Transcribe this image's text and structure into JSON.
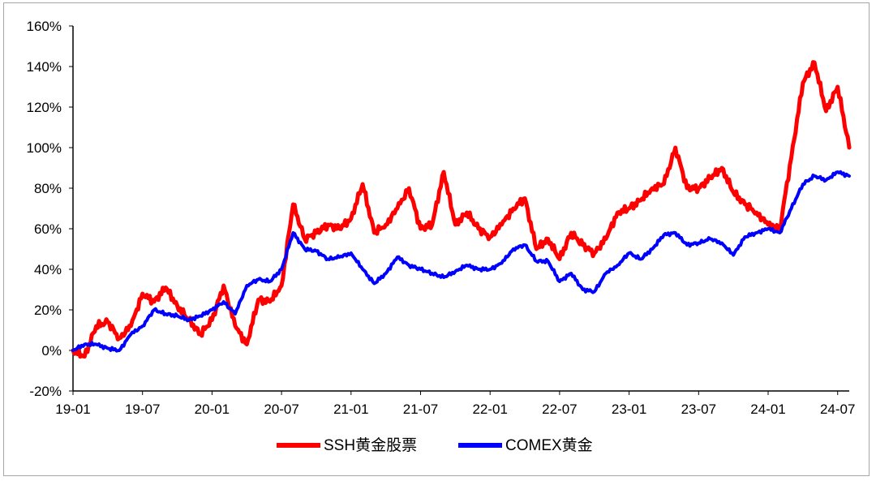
{
  "chart_data": {
    "type": "line",
    "title": "",
    "xlabel": "",
    "ylabel": "",
    "ylim": [
      -20,
      160
    ],
    "y_ticks": [
      "160%",
      "140%",
      "120%",
      "100%",
      "80%",
      "60%",
      "40%",
      "20%",
      "0%",
      "-20%"
    ],
    "y_tick_values": [
      160,
      140,
      120,
      100,
      80,
      60,
      40,
      20,
      0,
      -20
    ],
    "x_ticks": [
      "19-01",
      "19-07",
      "20-01",
      "20-07",
      "21-01",
      "21-07",
      "22-01",
      "22-07",
      "23-01",
      "23-07",
      "24-01",
      "24-07"
    ],
    "x_tick_values": [
      "2019-01",
      "2019-07",
      "2020-01",
      "2020-07",
      "2021-01",
      "2021-07",
      "2022-01",
      "2022-07",
      "2023-01",
      "2023-07",
      "2024-01",
      "2024-07"
    ],
    "xlim": [
      "2019-01",
      "2024-08"
    ],
    "grid": false,
    "legend_position": "bottom",
    "series": [
      {
        "name": "SSH黄金股票",
        "color": "#ff0000",
        "points": [
          [
            "2019-01",
            0
          ],
          [
            "2019-02",
            -3
          ],
          [
            "2019-03",
            12
          ],
          [
            "2019-04",
            14
          ],
          [
            "2019-05",
            6
          ],
          [
            "2019-06",
            12
          ],
          [
            "2019-07",
            28
          ],
          [
            "2019-08",
            24
          ],
          [
            "2019-09",
            31
          ],
          [
            "2019-10",
            22
          ],
          [
            "2019-11",
            15
          ],
          [
            "2019-12",
            8
          ],
          [
            "2020-01",
            15
          ],
          [
            "2020-02",
            32
          ],
          [
            "2020-03",
            12
          ],
          [
            "2020-04",
            3
          ],
          [
            "2020-05",
            25
          ],
          [
            "2020-06",
            24
          ],
          [
            "2020-07",
            32
          ],
          [
            "2020-08",
            72
          ],
          [
            "2020-09",
            55
          ],
          [
            "2020-10",
            58
          ],
          [
            "2020-11",
            62
          ],
          [
            "2020-12",
            60
          ],
          [
            "2021-01",
            65
          ],
          [
            "2021-02",
            82
          ],
          [
            "2021-03",
            58
          ],
          [
            "2021-04",
            62
          ],
          [
            "2021-05",
            70
          ],
          [
            "2021-06",
            80
          ],
          [
            "2021-07",
            60
          ],
          [
            "2021-08",
            62
          ],
          [
            "2021-09",
            88
          ],
          [
            "2021-10",
            62
          ],
          [
            "2021-11",
            68
          ],
          [
            "2021-12",
            60
          ],
          [
            "2022-01",
            56
          ],
          [
            "2022-02",
            62
          ],
          [
            "2022-03",
            70
          ],
          [
            "2022-04",
            75
          ],
          [
            "2022-05",
            50
          ],
          [
            "2022-06",
            55
          ],
          [
            "2022-07",
            45
          ],
          [
            "2022-08",
            58
          ],
          [
            "2022-09",
            52
          ],
          [
            "2022-10",
            48
          ],
          [
            "2022-11",
            55
          ],
          [
            "2022-12",
            68
          ],
          [
            "2023-01",
            70
          ],
          [
            "2023-02",
            74
          ],
          [
            "2023-03",
            80
          ],
          [
            "2023-04",
            82
          ],
          [
            "2023-05",
            100
          ],
          [
            "2023-06",
            80
          ],
          [
            "2023-07",
            80
          ],
          [
            "2023-08",
            85
          ],
          [
            "2023-09",
            90
          ],
          [
            "2023-10",
            78
          ],
          [
            "2023-11",
            72
          ],
          [
            "2023-12",
            68
          ],
          [
            "2024-01",
            62
          ],
          [
            "2024-02",
            60
          ],
          [
            "2024-03",
            95
          ],
          [
            "2024-04",
            132
          ],
          [
            "2024-05",
            142
          ],
          [
            "2024-06",
            118
          ],
          [
            "2024-07",
            130
          ],
          [
            "2024-08",
            100
          ]
        ]
      },
      {
        "name": "COMEX黄金",
        "color": "#0000ff",
        "points": [
          [
            "2019-01",
            0
          ],
          [
            "2019-02",
            3
          ],
          [
            "2019-03",
            3
          ],
          [
            "2019-04",
            1
          ],
          [
            "2019-05",
            0
          ],
          [
            "2019-06",
            8
          ],
          [
            "2019-07",
            12
          ],
          [
            "2019-08",
            20
          ],
          [
            "2019-09",
            18
          ],
          [
            "2019-10",
            17
          ],
          [
            "2019-11",
            15
          ],
          [
            "2019-12",
            17
          ],
          [
            "2020-01",
            20
          ],
          [
            "2020-02",
            24
          ],
          [
            "2020-03",
            18
          ],
          [
            "2020-04",
            32
          ],
          [
            "2020-05",
            35
          ],
          [
            "2020-06",
            34
          ],
          [
            "2020-07",
            40
          ],
          [
            "2020-08",
            58
          ],
          [
            "2020-09",
            50
          ],
          [
            "2020-10",
            49
          ],
          [
            "2020-11",
            45
          ],
          [
            "2020-12",
            46
          ],
          [
            "2021-01",
            48
          ],
          [
            "2021-02",
            40
          ],
          [
            "2021-03",
            33
          ],
          [
            "2021-04",
            38
          ],
          [
            "2021-05",
            46
          ],
          [
            "2021-06",
            42
          ],
          [
            "2021-07",
            40
          ],
          [
            "2021-08",
            38
          ],
          [
            "2021-09",
            36
          ],
          [
            "2021-10",
            39
          ],
          [
            "2021-11",
            42
          ],
          [
            "2021-12",
            40
          ],
          [
            "2022-01",
            40
          ],
          [
            "2022-02",
            43
          ],
          [
            "2022-03",
            50
          ],
          [
            "2022-04",
            52
          ],
          [
            "2022-05",
            44
          ],
          [
            "2022-06",
            44
          ],
          [
            "2022-07",
            34
          ],
          [
            "2022-08",
            38
          ],
          [
            "2022-09",
            30
          ],
          [
            "2022-10",
            29
          ],
          [
            "2022-11",
            38
          ],
          [
            "2022-12",
            42
          ],
          [
            "2023-01",
            48
          ],
          [
            "2023-02",
            45
          ],
          [
            "2023-03",
            50
          ],
          [
            "2023-04",
            57
          ],
          [
            "2023-05",
            58
          ],
          [
            "2023-06",
            52
          ],
          [
            "2023-07",
            53
          ],
          [
            "2023-08",
            55
          ],
          [
            "2023-09",
            53
          ],
          [
            "2023-10",
            47
          ],
          [
            "2023-11",
            56
          ],
          [
            "2023-12",
            58
          ],
          [
            "2024-01",
            60
          ],
          [
            "2024-02",
            58
          ],
          [
            "2024-03",
            70
          ],
          [
            "2024-04",
            82
          ],
          [
            "2024-05",
            86
          ],
          [
            "2024-06",
            84
          ],
          [
            "2024-07",
            88
          ],
          [
            "2024-08",
            86
          ]
        ]
      }
    ]
  }
}
